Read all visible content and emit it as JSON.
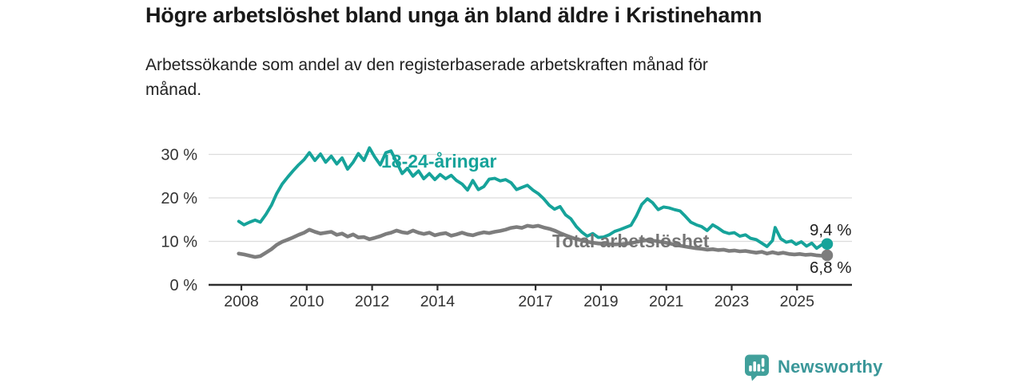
{
  "title": "Högre arbetslöshet bland unga än bland äldre i Kristinehamn",
  "subtitle_lines": [
    "Arbetssökande som andel av den registerbaserade arbetskraften månad för",
    "månad."
  ],
  "branding": {
    "name": "Newsworthy",
    "logo_icon": "newsworthy-speech-bubble-bar-chart-icon",
    "color": "#3a9799"
  },
  "colors": {
    "young_line": "#16a39a",
    "total_line": "#7d7d7d",
    "grid": "#dcdcdc",
    "axis": "#2e2e2e",
    "tick_text": "#333333",
    "annotation_text": "#222222"
  },
  "chart_data": {
    "type": "line",
    "title": "Högre arbetslöshet bland unga än bland äldre i Kristinehamn",
    "subtitle": "Arbetssökande som andel av den registerbaserade arbetskraften månad för månad.",
    "x_unit": "decimal_year",
    "y_unit": "%",
    "grid": "horizontal",
    "x_axis": {
      "ticks": [
        2008,
        2010,
        2012,
        2014,
        2017,
        2019,
        2021,
        2023,
        2025
      ],
      "tick_labels": [
        "2008",
        "2010",
        "2012",
        "2014",
        "2017",
        "2019",
        "2021",
        "2023",
        "2025"
      ],
      "range": [
        2007.5,
        2026.6
      ]
    },
    "y_axis": {
      "ticks": [
        0,
        10,
        20,
        30
      ],
      "tick_labels": [
        "0 %",
        "10 %",
        "20 %",
        "30 %"
      ],
      "range": [
        0,
        33
      ]
    },
    "series": [
      {
        "name": "18-24-åringar",
        "color": "#16a39a",
        "end_value": 9.4,
        "end_label": "9,4 %",
        "points": [
          [
            2007.92,
            14.6
          ],
          [
            2008.08,
            13.8
          ],
          [
            2008.25,
            14.4
          ],
          [
            2008.42,
            14.9
          ],
          [
            2008.58,
            14.4
          ],
          [
            2008.75,
            16.2
          ],
          [
            2008.92,
            18.3
          ],
          [
            2009.08,
            21.0
          ],
          [
            2009.25,
            23.2
          ],
          [
            2009.42,
            24.8
          ],
          [
            2009.58,
            26.2
          ],
          [
            2009.75,
            27.6
          ],
          [
            2009.92,
            28.8
          ],
          [
            2010.08,
            30.4
          ],
          [
            2010.25,
            28.6
          ],
          [
            2010.42,
            30.1
          ],
          [
            2010.58,
            28.2
          ],
          [
            2010.75,
            29.6
          ],
          [
            2010.92,
            27.8
          ],
          [
            2011.08,
            29.2
          ],
          [
            2011.25,
            26.6
          ],
          [
            2011.42,
            28.2
          ],
          [
            2011.58,
            30.2
          ],
          [
            2011.75,
            28.6
          ],
          [
            2011.92,
            31.5
          ],
          [
            2012.08,
            29.4
          ],
          [
            2012.25,
            27.6
          ],
          [
            2012.42,
            30.4
          ],
          [
            2012.58,
            30.8
          ],
          [
            2012.75,
            28.2
          ],
          [
            2012.92,
            25.6
          ],
          [
            2013.08,
            26.8
          ],
          [
            2013.25,
            25.0
          ],
          [
            2013.42,
            26.2
          ],
          [
            2013.58,
            24.4
          ],
          [
            2013.75,
            25.6
          ],
          [
            2013.92,
            24.2
          ],
          [
            2014.08,
            25.4
          ],
          [
            2014.25,
            24.4
          ],
          [
            2014.42,
            25.2
          ],
          [
            2014.58,
            24.0
          ],
          [
            2014.75,
            23.2
          ],
          [
            2014.92,
            21.8
          ],
          [
            2015.08,
            24.0
          ],
          [
            2015.25,
            21.9
          ],
          [
            2015.42,
            22.6
          ],
          [
            2015.58,
            24.3
          ],
          [
            2015.75,
            24.5
          ],
          [
            2015.92,
            23.9
          ],
          [
            2016.08,
            24.2
          ],
          [
            2016.25,
            23.5
          ],
          [
            2016.42,
            21.9
          ],
          [
            2016.58,
            22.4
          ],
          [
            2016.75,
            22.9
          ],
          [
            2016.92,
            21.8
          ],
          [
            2017.08,
            21.0
          ],
          [
            2017.25,
            19.8
          ],
          [
            2017.42,
            18.3
          ],
          [
            2017.58,
            17.4
          ],
          [
            2017.75,
            18.0
          ],
          [
            2017.92,
            16.1
          ],
          [
            2018.08,
            15.2
          ],
          [
            2018.25,
            13.4
          ],
          [
            2018.42,
            12.1
          ],
          [
            2018.58,
            11.2
          ],
          [
            2018.75,
            11.8
          ],
          [
            2018.92,
            10.9
          ],
          [
            2019.08,
            11.0
          ],
          [
            2019.25,
            11.5
          ],
          [
            2019.42,
            12.3
          ],
          [
            2019.58,
            12.7
          ],
          [
            2019.75,
            13.2
          ],
          [
            2019.92,
            13.7
          ],
          [
            2020.08,
            15.8
          ],
          [
            2020.25,
            18.5
          ],
          [
            2020.42,
            19.8
          ],
          [
            2020.58,
            18.9
          ],
          [
            2020.75,
            17.3
          ],
          [
            2020.92,
            17.9
          ],
          [
            2021.08,
            17.7
          ],
          [
            2021.25,
            17.3
          ],
          [
            2021.42,
            17.0
          ],
          [
            2021.58,
            15.8
          ],
          [
            2021.75,
            14.4
          ],
          [
            2021.92,
            13.8
          ],
          [
            2022.08,
            13.4
          ],
          [
            2022.25,
            12.5
          ],
          [
            2022.42,
            13.8
          ],
          [
            2022.58,
            13.1
          ],
          [
            2022.75,
            12.2
          ],
          [
            2022.92,
            11.8
          ],
          [
            2023.08,
            12.0
          ],
          [
            2023.25,
            11.2
          ],
          [
            2023.42,
            11.5
          ],
          [
            2023.58,
            10.7
          ],
          [
            2023.75,
            10.4
          ],
          [
            2023.92,
            9.6
          ],
          [
            2024.08,
            8.8
          ],
          [
            2024.25,
            10.2
          ],
          [
            2024.33,
            13.2
          ],
          [
            2024.5,
            10.6
          ],
          [
            2024.67,
            9.8
          ],
          [
            2024.83,
            10.1
          ],
          [
            2024.97,
            9.3
          ],
          [
            2025.13,
            9.9
          ],
          [
            2025.29,
            8.9
          ],
          [
            2025.45,
            9.6
          ],
          [
            2025.6,
            8.4
          ],
          [
            2025.75,
            9.2
          ],
          [
            2025.92,
            9.4
          ]
        ]
      },
      {
        "name": "Total arbetslöshet",
        "color": "#7d7d7d",
        "end_value": 6.8,
        "end_label": "6,8 %",
        "points": [
          [
            2007.92,
            7.2
          ],
          [
            2008.08,
            7.0
          ],
          [
            2008.25,
            6.7
          ],
          [
            2008.42,
            6.4
          ],
          [
            2008.58,
            6.6
          ],
          [
            2008.75,
            7.4
          ],
          [
            2008.92,
            8.2
          ],
          [
            2009.08,
            9.2
          ],
          [
            2009.25,
            9.9
          ],
          [
            2009.42,
            10.4
          ],
          [
            2009.58,
            10.9
          ],
          [
            2009.75,
            11.5
          ],
          [
            2009.92,
            12.0
          ],
          [
            2010.08,
            12.7
          ],
          [
            2010.25,
            12.2
          ],
          [
            2010.42,
            11.8
          ],
          [
            2010.58,
            12.0
          ],
          [
            2010.75,
            12.2
          ],
          [
            2010.92,
            11.5
          ],
          [
            2011.08,
            11.8
          ],
          [
            2011.25,
            11.1
          ],
          [
            2011.42,
            11.6
          ],
          [
            2011.58,
            10.9
          ],
          [
            2011.75,
            11.0
          ],
          [
            2011.92,
            10.5
          ],
          [
            2012.08,
            10.8
          ],
          [
            2012.25,
            11.2
          ],
          [
            2012.42,
            11.7
          ],
          [
            2012.58,
            12.0
          ],
          [
            2012.75,
            12.5
          ],
          [
            2012.92,
            12.1
          ],
          [
            2013.08,
            11.9
          ],
          [
            2013.25,
            12.5
          ],
          [
            2013.42,
            12.0
          ],
          [
            2013.58,
            11.7
          ],
          [
            2013.75,
            12.0
          ],
          [
            2013.92,
            11.4
          ],
          [
            2014.08,
            11.7
          ],
          [
            2014.25,
            11.9
          ],
          [
            2014.42,
            11.3
          ],
          [
            2014.58,
            11.6
          ],
          [
            2014.75,
            12.0
          ],
          [
            2014.92,
            11.6
          ],
          [
            2015.08,
            11.4
          ],
          [
            2015.25,
            11.8
          ],
          [
            2015.42,
            12.1
          ],
          [
            2015.58,
            11.9
          ],
          [
            2015.75,
            12.2
          ],
          [
            2015.92,
            12.4
          ],
          [
            2016.08,
            12.7
          ],
          [
            2016.25,
            13.1
          ],
          [
            2016.42,
            13.3
          ],
          [
            2016.58,
            13.1
          ],
          [
            2016.75,
            13.6
          ],
          [
            2016.92,
            13.4
          ],
          [
            2017.08,
            13.6
          ],
          [
            2017.25,
            13.2
          ],
          [
            2017.42,
            12.9
          ],
          [
            2017.58,
            12.5
          ],
          [
            2017.75,
            11.9
          ],
          [
            2017.92,
            11.4
          ],
          [
            2018.17,
            10.7
          ],
          [
            2018.42,
            10.2
          ],
          [
            2018.67,
            9.8
          ],
          [
            2018.92,
            9.5
          ],
          [
            2019.17,
            9.4
          ],
          [
            2019.42,
            9.3
          ],
          [
            2019.67,
            9.4
          ],
          [
            2019.92,
            9.6
          ],
          [
            2020.17,
            10.0
          ],
          [
            2020.42,
            10.3
          ],
          [
            2020.67,
            10.1
          ],
          [
            2020.92,
            9.8
          ],
          [
            2021.17,
            9.4
          ],
          [
            2021.42,
            9.0
          ],
          [
            2021.67,
            8.7
          ],
          [
            2021.92,
            8.4
          ],
          [
            2022.08,
            8.3
          ],
          [
            2022.25,
            8.1
          ],
          [
            2022.42,
            8.2
          ],
          [
            2022.58,
            8.0
          ],
          [
            2022.75,
            8.1
          ],
          [
            2022.92,
            7.8
          ],
          [
            2023.08,
            7.9
          ],
          [
            2023.25,
            7.7
          ],
          [
            2023.42,
            7.8
          ],
          [
            2023.58,
            7.6
          ],
          [
            2023.75,
            7.4
          ],
          [
            2023.92,
            7.6
          ],
          [
            2024.08,
            7.2
          ],
          [
            2024.25,
            7.5
          ],
          [
            2024.42,
            7.2
          ],
          [
            2024.58,
            7.4
          ],
          [
            2024.75,
            7.1
          ],
          [
            2024.92,
            7.0
          ],
          [
            2025.08,
            7.1
          ],
          [
            2025.25,
            6.9
          ],
          [
            2025.42,
            7.0
          ],
          [
            2025.58,
            6.8
          ],
          [
            2025.75,
            6.7
          ],
          [
            2025.92,
            6.8
          ]
        ]
      }
    ]
  }
}
